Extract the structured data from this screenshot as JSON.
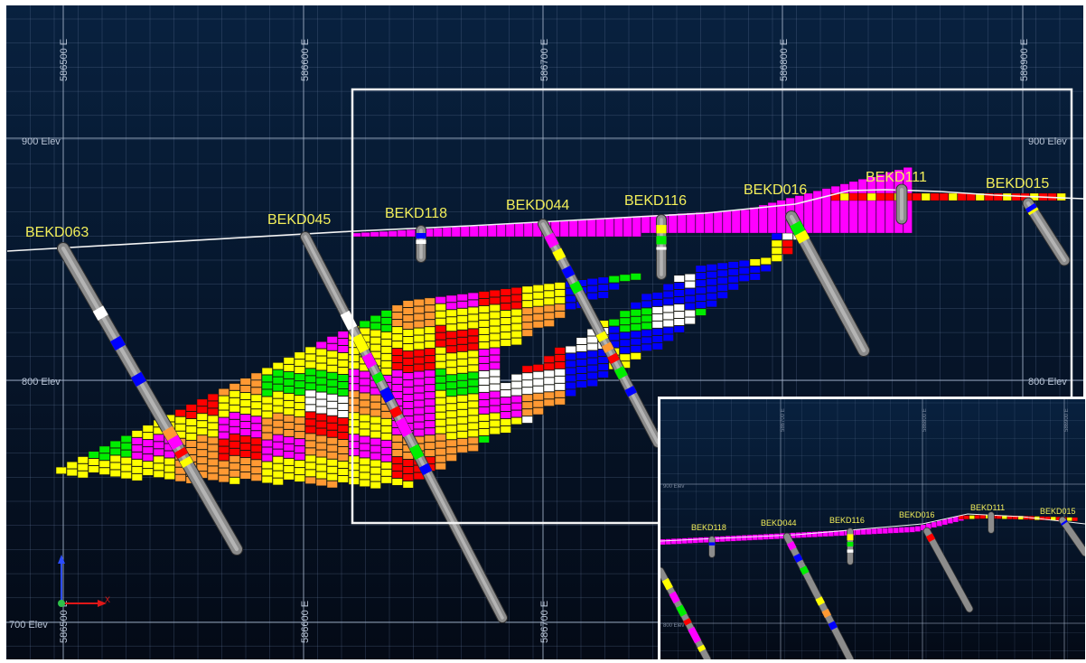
{
  "section": {
    "elevation_labels": [
      "900 Elev",
      "800 Elev",
      "700 Elev"
    ],
    "easting_labels": [
      "586500 E",
      "586600 E",
      "586700 E",
      "586800 E",
      "586900 E"
    ],
    "drillholes": [
      {
        "id": "BEKD063"
      },
      {
        "id": "BEKD045"
      },
      {
        "id": "BEKD118"
      },
      {
        "id": "BEKD044"
      },
      {
        "id": "BEKD116"
      },
      {
        "id": "BEKD016"
      },
      {
        "id": "BEKD111"
      },
      {
        "id": "BEKD015"
      }
    ],
    "axis_triad": {
      "x_label": "X"
    }
  },
  "inset": {
    "drillholes": [
      "BEKD118",
      "BEKD044",
      "BEKD116",
      "BEKD016",
      "BEKD111",
      "BEKD015"
    ]
  },
  "colors": {
    "background_top": "#08213f",
    "background_bottom": "#040a16",
    "grid": "#5f7396",
    "topography": "#f4f4f4",
    "drill_hole": "#8c8c8c",
    "zoom_frame": "#f4f4f4",
    "grade_bins": [
      "#ffff00",
      "#ff9933",
      "#00ee00",
      "#ff0000",
      "#ff00ff",
      "#0000ff",
      "#ffffff"
    ]
  }
}
